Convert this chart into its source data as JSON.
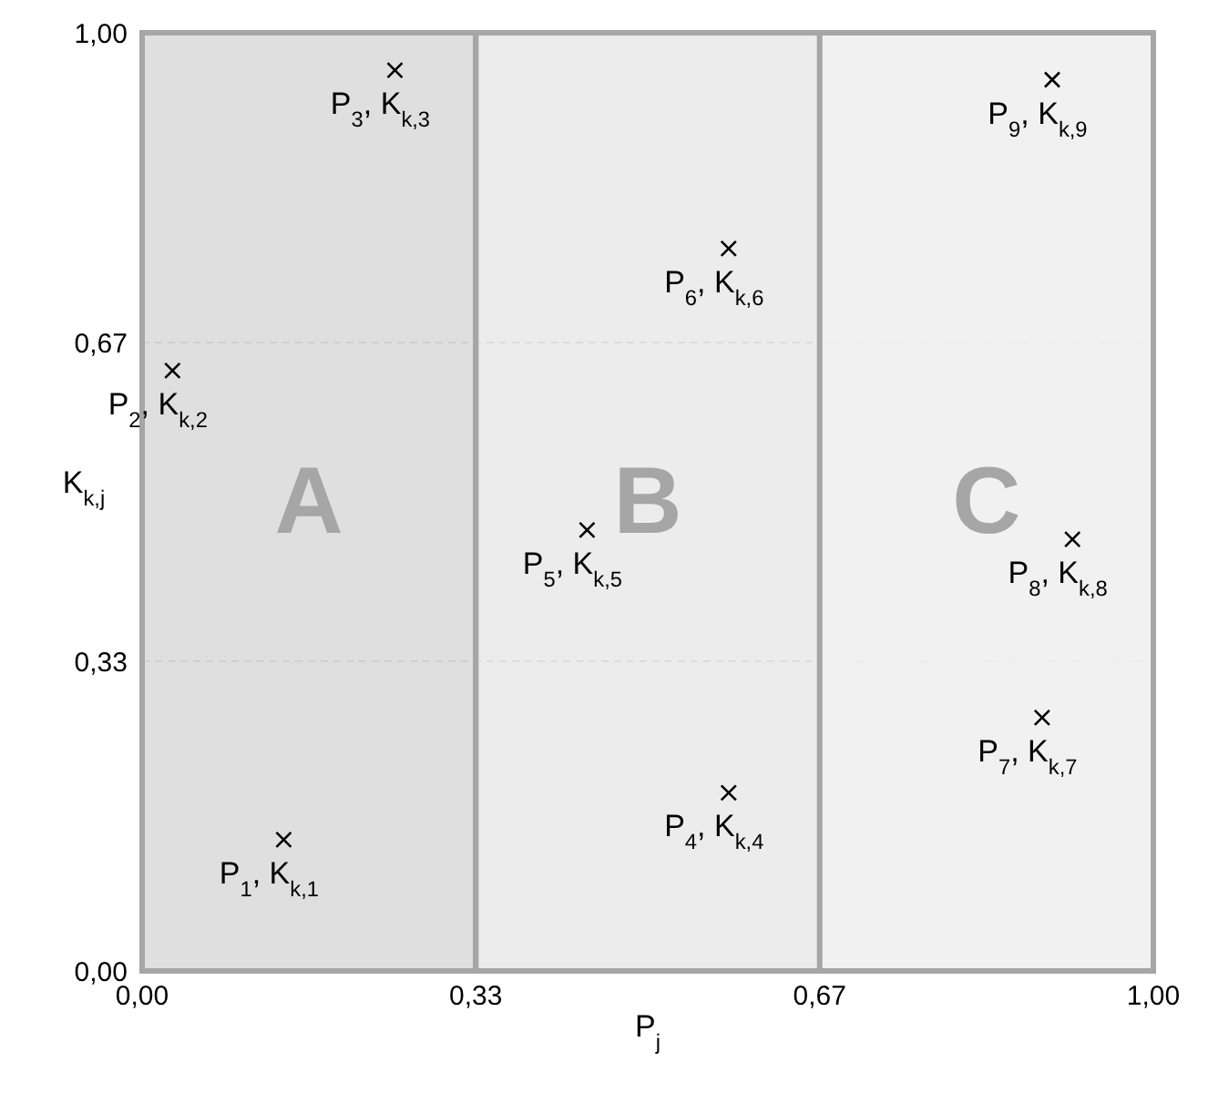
{
  "chart_data": {
    "type": "scatter",
    "xlabel": "P$_{j}$",
    "ylabel": "K$_{k,j}$",
    "x": [
      0.14,
      0.03,
      0.25,
      0.58,
      0.44,
      0.58,
      0.89,
      0.92,
      0.9
    ],
    "series": [
      {
        "color": "#000000",
        "values": [
          0.14,
          0.64,
          0.96,
          0.19,
          0.47,
          0.77,
          0.27,
          0.46,
          0.95
        ]
      }
    ],
    "xlim": [
      0,
      1
    ],
    "ylim": [
      0,
      1
    ],
    "xticks": [
      {
        "value": 0,
        "label": "0,00"
      },
      {
        "value": 0.33,
        "label": "0,33"
      },
      {
        "value": 0.67,
        "label": "0,67"
      },
      {
        "value": 1,
        "label": "1,00"
      }
    ],
    "yticks": [
      {
        "value": 0,
        "label": "0,00"
      },
      {
        "value": 0.33,
        "label": "0,33"
      },
      {
        "value": 0.67,
        "label": "0,67"
      },
      {
        "value": 1,
        "label": "1,00"
      }
    ],
    "grid": true,
    "marker": "cross",
    "bands": [
      {
        "axis": "x",
        "from": 0,
        "to": 0.33,
        "label": "A",
        "color": "#d4d4d4"
      },
      {
        "axis": "x",
        "from": 0.33,
        "to": 1,
        "label": "B",
        "color": "#e6e6e6"
      },
      {
        "axis": "x",
        "from": 0.67,
        "to": 1,
        "label": "C",
        "color": "#f3f3f3"
      }
    ],
    "annotations": [
      {
        "text": "P$_{1}$, K$_{k,1}$",
        "x": 0.14,
        "y": 0.14
      },
      {
        "text": "P$_{2}$, K$_{k,2}$",
        "x": 0.03,
        "y": 0.64
      },
      {
        "text": "P$_{3}$, K$_{k,3}$",
        "x": 0.25,
        "y": 0.96
      },
      {
        "text": "P$_{4}$, K$_{k,4}$",
        "x": 0.58,
        "y": 0.19
      },
      {
        "text": "P$_{5}$, K$_{k,5}$",
        "x": 0.44,
        "y": 0.47
      },
      {
        "text": "P$_{6}$, K$_{k,6}$",
        "x": 0.58,
        "y": 0.77
      },
      {
        "text": "P$_{7}$, K$_{k,7}$",
        "x": 0.89,
        "y": 0.27
      },
      {
        "text": "P$_{8}$, K$_{k,8}$",
        "x": 0.92,
        "y": 0.46
      },
      {
        "text": "P$_{9}$, K$_{k,9}$",
        "x": 0.9,
        "y": 0.95
      }
    ]
  }
}
